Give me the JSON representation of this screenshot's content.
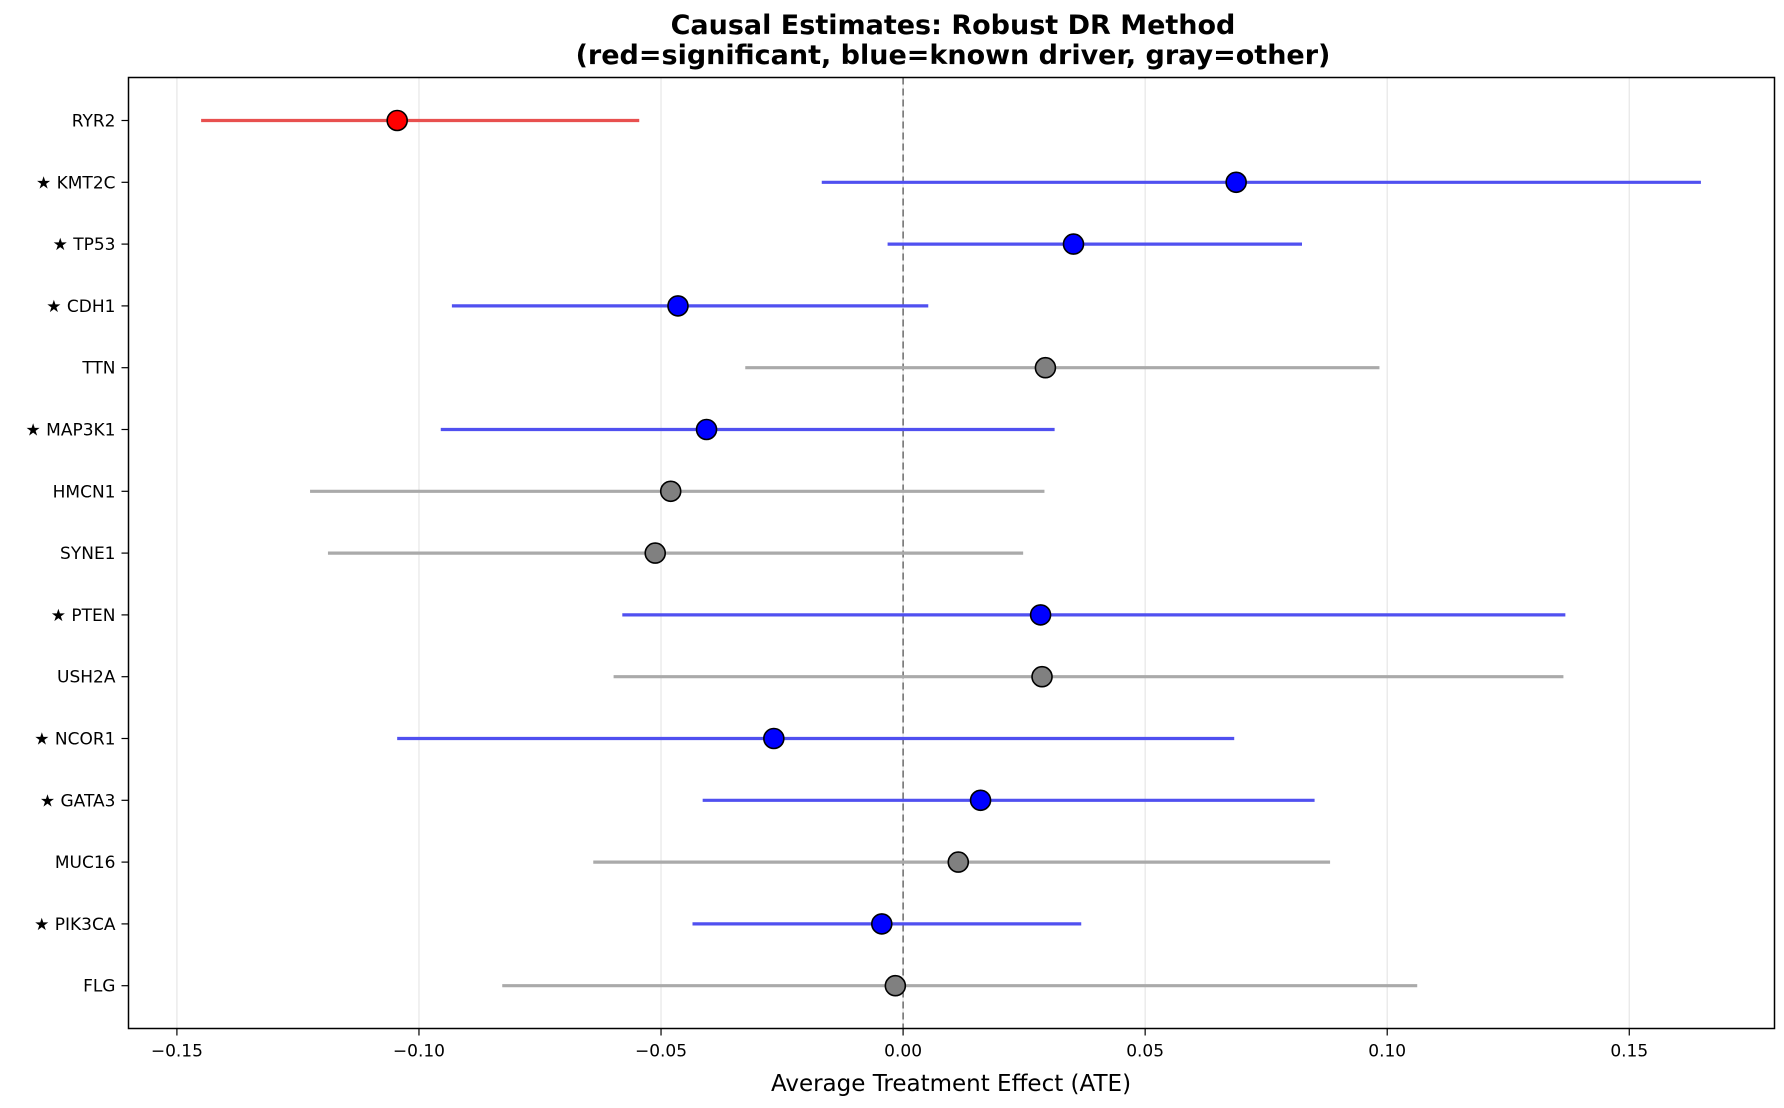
{
  "chart_data": {
    "type": "forest",
    "title_line1": "Causal Estimates: Robust DR Method",
    "title_line2": "(red=significant, blue=known driver, gray=other)",
    "xlabel": "Average Treatment Effect (ATE)",
    "xlim": [
      -0.16,
      0.18
    ],
    "xticks": [
      -0.15,
      -0.1,
      -0.05,
      0.0,
      0.05,
      0.1,
      0.15
    ],
    "xtick_labels": [
      "−0.15",
      "−0.10",
      "−0.05",
      "0.00",
      "0.05",
      "0.10",
      "0.15"
    ],
    "reference_line": 0,
    "grid": "x",
    "colors": {
      "significant": "#ff0000",
      "known_driver": "#0000ff",
      "other": "#808080",
      "significant_ci": "#e8504f",
      "known_driver_ci": "#5050f0",
      "other_ci": "#aaaaaa"
    },
    "genes": [
      {
        "label": "RYR2",
        "ate": -0.1045,
        "ci": [
          -0.145,
          -0.0545
        ],
        "category": "significant"
      },
      {
        "label": "★ KMT2C",
        "ate": 0.0688,
        "ci": [
          -0.0168,
          0.1648
        ],
        "category": "known_driver"
      },
      {
        "label": "★ TP53",
        "ate": 0.0352,
        "ci": [
          -0.0032,
          0.0824
        ],
        "category": "known_driver"
      },
      {
        "label": "★ CDH1",
        "ate": -0.0465,
        "ci": [
          -0.0932,
          0.0052
        ],
        "category": "known_driver"
      },
      {
        "label": "TTN",
        "ate": 0.0294,
        "ci": [
          -0.0326,
          0.0984
        ],
        "category": "other"
      },
      {
        "label": "★ MAP3K1",
        "ate": -0.0406,
        "ci": [
          -0.0955,
          0.0313
        ],
        "category": "known_driver"
      },
      {
        "label": "HMCN1",
        "ate": -0.048,
        "ci": [
          -0.1225,
          0.0292
        ],
        "category": "other"
      },
      {
        "label": "SYNE1",
        "ate": -0.0512,
        "ci": [
          -0.1188,
          0.0248
        ],
        "category": "other"
      },
      {
        "label": "★ PTEN",
        "ate": 0.0284,
        "ci": [
          -0.058,
          0.1368
        ],
        "category": "known_driver"
      },
      {
        "label": "USH2A",
        "ate": 0.0287,
        "ci": [
          -0.0598,
          0.1364
        ],
        "category": "other"
      },
      {
        "label": "★ NCOR1",
        "ate": -0.0267,
        "ci": [
          -0.1045,
          0.0684
        ],
        "category": "known_driver"
      },
      {
        "label": "★ GATA3",
        "ate": 0.016,
        "ci": [
          -0.0414,
          0.085
        ],
        "category": "known_driver"
      },
      {
        "label": "MUC16",
        "ate": 0.0114,
        "ci": [
          -0.064,
          0.0882
        ],
        "category": "other"
      },
      {
        "label": "★ PIK3CA",
        "ate": -0.0044,
        "ci": [
          -0.0435,
          0.0368
        ],
        "category": "known_driver"
      },
      {
        "label": "FLG",
        "ate": -0.0016,
        "ci": [
          -0.0828,
          0.1062
        ],
        "category": "other"
      }
    ]
  }
}
